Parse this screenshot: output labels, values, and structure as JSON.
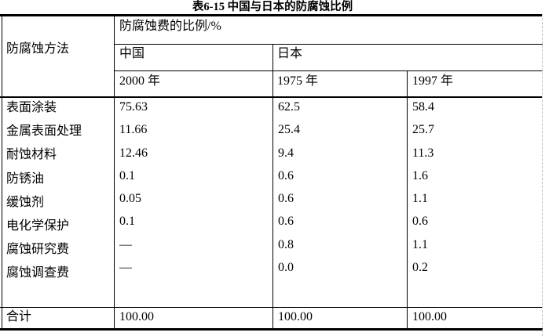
{
  "title": "表6-15 中国与日本的防腐蚀比例",
  "table": {
    "method_header": "防腐蚀方法",
    "ratio_header": "防腐蚀费的比例/%",
    "countries": [
      "中国",
      "日本"
    ],
    "years": [
      "2000 年",
      "1975 年",
      "1997 年"
    ],
    "rows": [
      {
        "label": "表面涂装",
        "values": [
          "75.63",
          "62.5",
          "58.4"
        ]
      },
      {
        "label": "金属表面处理",
        "values": [
          "11.66",
          "25.4",
          "25.7"
        ]
      },
      {
        "label": "耐蚀材料",
        "values": [
          "12.46",
          "9.4",
          "11.3"
        ]
      },
      {
        "label": "防锈油",
        "values": [
          "0.1",
          "0.6",
          "1.6"
        ]
      },
      {
        "label": "缓蚀剂",
        "values": [
          "0.05",
          "0.6",
          "1.1"
        ]
      },
      {
        "label": "电化学保护",
        "values": [
          "0.1",
          "0.6",
          "0.6"
        ]
      },
      {
        "label": "腐蚀研究费",
        "values": [
          "—",
          "0.8",
          "1.1"
        ]
      },
      {
        "label": "腐蚀调查费",
        "values": [
          "—",
          "0.0",
          "0.2"
        ]
      }
    ],
    "total_row": {
      "label": "合计",
      "values": [
        "100.00",
        "100.00",
        "100.00"
      ]
    }
  },
  "colors": {
    "text": "#000000",
    "border": "#000000",
    "grid_dashed": "#b8b8b8",
    "background": "#ffffff"
  }
}
